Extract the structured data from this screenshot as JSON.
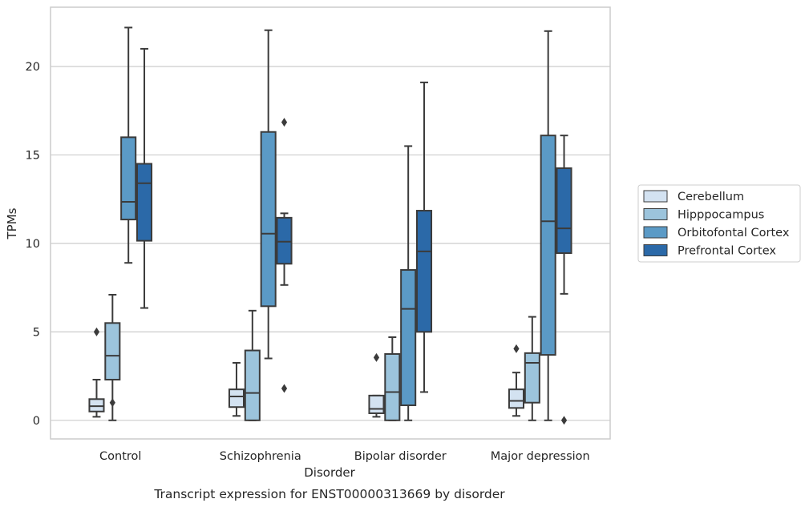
{
  "chart_data": {
    "type": "box",
    "caption": "Transcript expression for ENST00000313669 by disorder",
    "xlabel": "Disorder",
    "ylabel": "TPMs",
    "ylim": [
      -1.05,
      23.35
    ],
    "yticks": [
      0,
      5,
      10,
      15,
      20
    ],
    "grid": "horizontal",
    "legend_position": "right",
    "categories": [
      "Control",
      "Schizophrenia",
      "Bipolar disorder",
      "Major depression"
    ],
    "series": [
      {
        "name": "Cerebellum",
        "color": "#d3e2f1",
        "boxes": [
          {
            "whisker_low": 0.2,
            "q1": 0.5,
            "median": 0.8,
            "q3": 1.2,
            "whisker_high": 2.3,
            "outliers": [
              5.0
            ]
          },
          {
            "whisker_low": 0.25,
            "q1": 0.75,
            "median": 1.35,
            "q3": 1.75,
            "whisker_high": 3.25,
            "outliers": []
          },
          {
            "whisker_low": 0.2,
            "q1": 0.4,
            "median": 0.65,
            "q3": 1.4,
            "whisker_high": 1.4,
            "outliers": [
              3.55
            ]
          },
          {
            "whisker_low": 0.25,
            "q1": 0.7,
            "median": 1.1,
            "q3": 1.75,
            "whisker_high": 2.7,
            "outliers": [
              4.05
            ]
          }
        ]
      },
      {
        "name": "Hipppocampus",
        "color": "#9cc4dc",
        "boxes": [
          {
            "whisker_low": 0.0,
            "q1": 2.3,
            "median": 3.65,
            "q3": 5.5,
            "whisker_high": 7.1,
            "outliers": [
              1.0
            ]
          },
          {
            "whisker_low": 0.0,
            "q1": 0.0,
            "median": 1.55,
            "q3": 3.95,
            "whisker_high": 6.2,
            "outliers": []
          },
          {
            "whisker_low": 0.0,
            "q1": 0.0,
            "median": 1.6,
            "q3": 3.75,
            "whisker_high": 4.7,
            "outliers": []
          },
          {
            "whisker_low": 0.0,
            "q1": 1.0,
            "median": 3.25,
            "q3": 3.8,
            "whisker_high": 5.85,
            "outliers": []
          }
        ]
      },
      {
        "name": "Orbitofontal Cortex",
        "color": "#5b9ac6",
        "boxes": [
          {
            "whisker_low": 8.9,
            "q1": 11.35,
            "median": 12.35,
            "q3": 16.0,
            "whisker_high": 22.2,
            "outliers": []
          },
          {
            "whisker_low": 3.5,
            "q1": 6.45,
            "median": 10.55,
            "q3": 16.3,
            "whisker_high": 22.05,
            "outliers": []
          },
          {
            "whisker_low": 0.0,
            "q1": 0.85,
            "median": 6.3,
            "q3": 8.5,
            "whisker_high": 15.5,
            "outliers": []
          },
          {
            "whisker_low": 0.0,
            "q1": 3.7,
            "median": 11.25,
            "q3": 16.1,
            "whisker_high": 22.0,
            "outliers": []
          }
        ]
      },
      {
        "name": "Prefrontal Cortex",
        "color": "#2b69a8",
        "boxes": [
          {
            "whisker_low": 6.35,
            "q1": 10.15,
            "median": 13.4,
            "q3": 14.5,
            "whisker_high": 21.0,
            "outliers": []
          },
          {
            "whisker_low": 7.65,
            "q1": 8.85,
            "median": 10.1,
            "q3": 11.45,
            "whisker_high": 11.7,
            "outliers": [
              16.85,
              1.8
            ]
          },
          {
            "whisker_low": 1.6,
            "q1": 5.0,
            "median": 9.55,
            "q3": 11.85,
            "whisker_high": 19.1,
            "outliers": []
          },
          {
            "whisker_low": 7.15,
            "q1": 9.45,
            "median": 10.85,
            "q3": 14.25,
            "whisker_high": 16.1,
            "outliers": [
              0.0
            ]
          }
        ]
      }
    ]
  }
}
